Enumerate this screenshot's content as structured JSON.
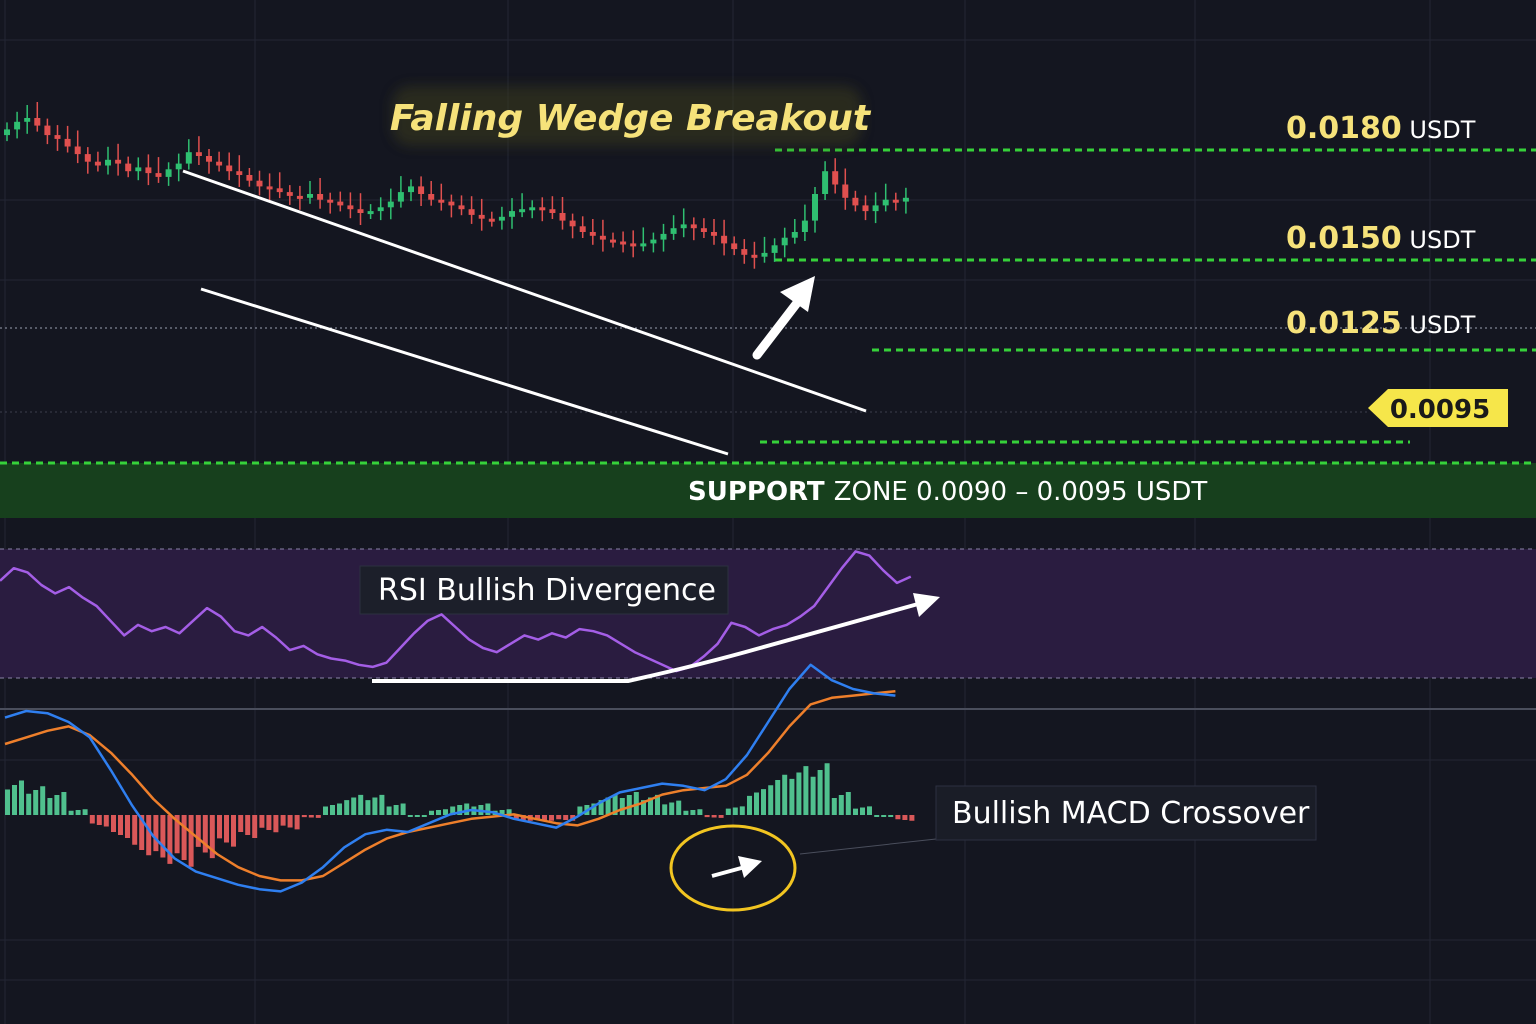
{
  "title": "Falling Wedge Breakout",
  "colors": {
    "background": "#141620",
    "grid": "#232634",
    "bull": "#2fbf71",
    "bear": "#e0504f",
    "level_line": "#36d13a",
    "level_text": "#f6e27a",
    "price_tag_bg": "#f6e64a",
    "support_bg": "#17401d",
    "rsi_line": "#a45ee6",
    "rsi_band": "#2a1c40",
    "macd_line": "#2f7ff0",
    "signal_line": "#ee7f2b",
    "highlight_ring": "#f2c521"
  },
  "levels": [
    {
      "value": "0.0180",
      "unit": "USDT"
    },
    {
      "value": "0.0150",
      "unit": "USDT"
    },
    {
      "value": "0.0125",
      "unit": "USDT"
    }
  ],
  "current_price": "0.0095",
  "support": {
    "strong": "SUPPORT",
    "rest": "ZONE 0.0090 – 0.0095 USDT"
  },
  "rsi_label": "RSI Bullish Divergence",
  "macd_label": "Bullish MACD Crossover",
  "chart_data": [
    {
      "type": "candlestick",
      "title": "Falling Wedge Breakout",
      "unit": "USDT",
      "price_levels": [
        0.018,
        0.015,
        0.0125
      ],
      "current_price": 0.0095,
      "support_zone": [
        0.009,
        0.0095
      ],
      "close_series": [
        0.0164,
        0.0168,
        0.017,
        0.0166,
        0.0161,
        0.0159,
        0.0155,
        0.0151,
        0.0147,
        0.0145,
        0.0148,
        0.0146,
        0.0142,
        0.0144,
        0.0141,
        0.0139,
        0.0143,
        0.0146,
        0.0152,
        0.015,
        0.0147,
        0.0145,
        0.0142,
        0.014,
        0.0137,
        0.0134,
        0.0133,
        0.0131,
        0.0129,
        0.0128,
        0.013,
        0.0127,
        0.0126,
        0.0124,
        0.0122,
        0.012,
        0.0121,
        0.0123,
        0.0126,
        0.0131,
        0.0134,
        0.013,
        0.0127,
        0.0126,
        0.0124,
        0.0122,
        0.0119,
        0.0117,
        0.0116,
        0.0118,
        0.0121,
        0.0122,
        0.0123,
        0.0122,
        0.012,
        0.0116,
        0.0113,
        0.011,
        0.0108,
        0.0106,
        0.0105,
        0.0104,
        0.0103,
        0.0104,
        0.0106,
        0.0109,
        0.0112,
        0.0114,
        0.0112,
        0.011,
        0.0108,
        0.0104,
        0.0101,
        0.0098,
        0.0097,
        0.0099,
        0.0103,
        0.0107,
        0.011,
        0.0116,
        0.013,
        0.0142,
        0.0135,
        0.0128,
        0.0124,
        0.0121,
        0.0124,
        0.0127,
        0.0126,
        0.0128
      ]
    },
    {
      "type": "line",
      "title": "RSI Bullish Divergence",
      "values": [
        52,
        58,
        56,
        50,
        46,
        49,
        44,
        40,
        33,
        26,
        31,
        28,
        30,
        27,
        33,
        39,
        35,
        28,
        26,
        30,
        25,
        19,
        21,
        17,
        15,
        14,
        12,
        11,
        13,
        20,
        27,
        33,
        36,
        30,
        24,
        20,
        18,
        22,
        26,
        24,
        27,
        25,
        29,
        28,
        26,
        22,
        18,
        15,
        12,
        9,
        11,
        16,
        22,
        32,
        30,
        26,
        29,
        31,
        35,
        40,
        49,
        58,
        66,
        64,
        57,
        51,
        54
      ]
    },
    {
      "type": "line",
      "title": "Bullish MACD Crossover",
      "series": [
        {
          "values": [
            0.42,
            0.45,
            0.44,
            0.4,
            0.33,
            0.18,
            0.02,
            -0.12,
            -0.22,
            -0.28,
            -0.31,
            -0.34,
            -0.36,
            -0.37,
            -0.33,
            -0.26,
            -0.17,
            -0.11,
            -0.09,
            -0.1,
            -0.06,
            -0.02,
            0.0,
            -0.01,
            -0.04,
            -0.06,
            -0.08,
            -0.03,
            0.03,
            0.08,
            0.1,
            0.12,
            0.11,
            0.09,
            0.14,
            0.25,
            0.4,
            0.55,
            0.66,
            0.59,
            0.55,
            0.53,
            0.52
          ]
        },
        {
          "values": [
            0.3,
            0.33,
            0.36,
            0.38,
            0.34,
            0.26,
            0.16,
            0.05,
            -0.04,
            -0.12,
            -0.2,
            -0.26,
            -0.3,
            -0.32,
            -0.32,
            -0.3,
            -0.24,
            -0.18,
            -0.13,
            -0.1,
            -0.08,
            -0.06,
            -0.04,
            -0.03,
            -0.02,
            -0.04,
            -0.06,
            -0.07,
            -0.04,
            0.0,
            0.03,
            0.07,
            0.09,
            0.1,
            0.11,
            0.16,
            0.26,
            0.38,
            0.48,
            0.51,
            0.52,
            0.53,
            0.54
          ]
        }
      ],
      "histogram": [
        0.12,
        0.1,
        0.08,
        0.02,
        -0.04,
        -0.08,
        -0.14,
        -0.17,
        -0.18,
        -0.15,
        -0.11,
        -0.08,
        -0.06,
        -0.05,
        -0.01,
        0.04,
        0.07,
        0.07,
        0.04,
        0.0,
        0.02,
        0.04,
        0.04,
        0.02,
        -0.02,
        -0.02,
        -0.02,
        0.04,
        0.07,
        0.08,
        0.07,
        0.05,
        0.02,
        -0.01,
        0.03,
        0.09,
        0.14,
        0.17,
        0.18,
        0.08,
        0.03,
        0.0,
        -0.02
      ]
    }
  ]
}
